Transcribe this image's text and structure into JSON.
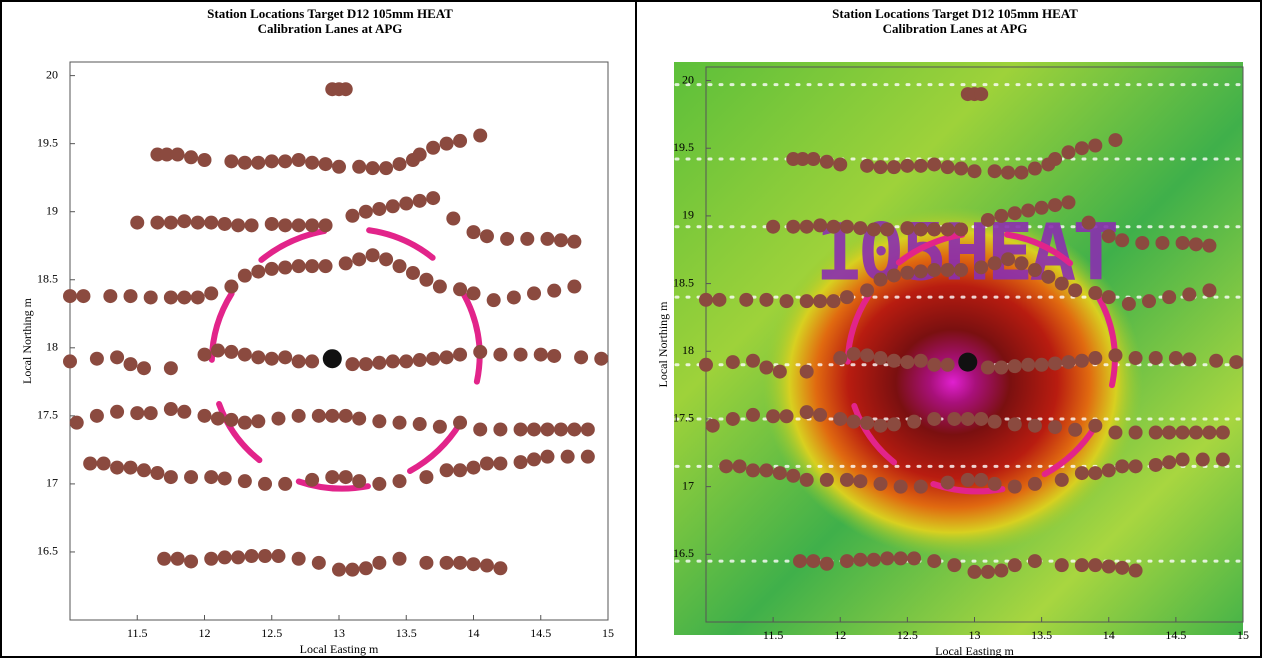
{
  "chart_data": [
    {
      "type": "scatter",
      "title": "Station Locations     Target D12  105mm HEAT",
      "subtitle": "Calibration Lanes at APG",
      "xlabel": "Local Easting  m",
      "ylabel": "Local Northing  m",
      "xlim": [
        11,
        15
      ],
      "ylim": [
        16,
        20.1
      ],
      "xticks": [
        11.5,
        12,
        12.5,
        13,
        13.5,
        14,
        14.5,
        15
      ],
      "yticks": [
        16.5,
        17,
        17.5,
        18,
        18.5,
        19,
        19.5,
        20
      ],
      "series": [
        {
          "color": "#8b4a3f",
          "x": [
            12.95,
            13.0,
            13.05,
            11.65,
            11.72,
            11.8,
            11.9,
            12.0,
            12.2,
            12.3,
            12.4,
            12.5,
            12.6,
            12.7,
            12.8,
            12.9,
            13.0,
            13.15,
            13.25,
            13.35,
            13.45,
            13.55,
            13.6,
            13.7,
            13.8,
            13.9,
            14.05,
            11.5,
            11.65,
            11.75,
            11.85,
            11.95,
            12.05,
            12.15,
            12.25,
            12.35,
            12.5,
            12.6,
            12.7,
            12.8,
            12.9,
            13.1,
            13.2,
            13.3,
            13.4,
            13.5,
            13.6,
            13.7,
            13.85,
            14.0,
            14.1,
            14.25,
            14.4,
            14.55,
            14.65,
            14.75,
            11.0,
            11.1,
            11.3,
            11.45,
            11.6,
            11.75,
            11.85,
            11.95,
            12.05,
            12.2,
            12.3,
            12.4,
            12.5,
            12.6,
            12.7,
            12.8,
            12.9,
            13.05,
            13.15,
            13.25,
            13.35,
            13.45,
            13.55,
            13.65,
            13.75,
            13.9,
            14.0,
            14.15,
            14.3,
            14.45,
            14.6,
            14.75,
            11.0,
            11.2,
            11.35,
            11.45,
            11.55,
            11.75,
            12.0,
            12.1,
            12.2,
            12.3,
            12.4,
            12.5,
            12.6,
            12.7,
            12.8,
            13.1,
            13.2,
            13.3,
            13.4,
            13.5,
            13.6,
            13.7,
            13.8,
            13.9,
            14.05,
            14.2,
            14.35,
            14.5,
            14.6,
            14.8,
            14.95,
            11.05,
            11.2,
            11.35,
            11.5,
            11.6,
            11.75,
            11.85,
            12.0,
            12.1,
            12.2,
            12.3,
            12.4,
            12.55,
            12.7,
            12.85,
            12.95,
            13.05,
            13.15,
            13.3,
            13.45,
            13.6,
            13.75,
            13.9,
            14.05,
            14.2,
            14.35,
            14.45,
            14.55,
            14.65,
            14.75,
            14.85,
            11.15,
            11.25,
            11.35,
            11.45,
            11.55,
            11.65,
            11.75,
            11.9,
            12.05,
            12.15,
            12.3,
            12.45,
            12.6,
            12.8,
            12.95,
            13.05,
            13.15,
            13.3,
            13.45,
            13.65,
            13.8,
            13.9,
            14.0,
            14.1,
            14.2,
            14.35,
            14.45,
            14.55,
            14.7,
            14.85,
            11.7,
            11.8,
            11.9,
            12.05,
            12.15,
            12.25,
            12.35,
            12.45,
            12.55,
            12.7,
            12.85,
            13.0,
            13.1,
            13.2,
            13.3,
            13.45,
            13.65,
            13.8,
            13.9,
            14.0,
            14.1,
            14.2
          ],
          "y": [
            19.9,
            19.9,
            19.9,
            19.42,
            19.42,
            19.42,
            19.4,
            19.38,
            19.37,
            19.36,
            19.36,
            19.37,
            19.37,
            19.38,
            19.36,
            19.35,
            19.33,
            19.33,
            19.32,
            19.32,
            19.35,
            19.38,
            19.42,
            19.47,
            19.5,
            19.52,
            19.56,
            18.92,
            18.92,
            18.92,
            18.93,
            18.92,
            18.92,
            18.91,
            18.9,
            18.9,
            18.91,
            18.9,
            18.9,
            18.9,
            18.9,
            18.97,
            19.0,
            19.02,
            19.04,
            19.06,
            19.08,
            19.1,
            18.95,
            18.85,
            18.82,
            18.8,
            18.8,
            18.8,
            18.79,
            18.78,
            18.38,
            18.38,
            18.38,
            18.38,
            18.37,
            18.37,
            18.37,
            18.37,
            18.4,
            18.45,
            18.53,
            18.56,
            18.58,
            18.59,
            18.6,
            18.6,
            18.6,
            18.62,
            18.65,
            18.68,
            18.65,
            18.6,
            18.55,
            18.5,
            18.45,
            18.43,
            18.4,
            18.35,
            18.37,
            18.4,
            18.42,
            18.45,
            17.9,
            17.92,
            17.93,
            17.88,
            17.85,
            17.85,
            17.95,
            17.98,
            17.97,
            17.95,
            17.93,
            17.92,
            17.93,
            17.9,
            17.9,
            17.88,
            17.88,
            17.89,
            17.9,
            17.9,
            17.91,
            17.92,
            17.93,
            17.95,
            17.97,
            17.95,
            17.95,
            17.95,
            17.94,
            17.93,
            17.92,
            17.45,
            17.5,
            17.53,
            17.52,
            17.52,
            17.55,
            17.53,
            17.5,
            17.48,
            17.47,
            17.45,
            17.46,
            17.48,
            17.5,
            17.5,
            17.5,
            17.5,
            17.48,
            17.46,
            17.45,
            17.44,
            17.42,
            17.45,
            17.4,
            17.4,
            17.4,
            17.4,
            17.4,
            17.4,
            17.4,
            17.4,
            17.15,
            17.15,
            17.12,
            17.12,
            17.1,
            17.08,
            17.05,
            17.05,
            17.05,
            17.04,
            17.02,
            17.0,
            17.0,
            17.03,
            17.05,
            17.05,
            17.02,
            17.0,
            17.02,
            17.05,
            17.1,
            17.1,
            17.12,
            17.15,
            17.15,
            17.16,
            17.18,
            17.2,
            17.2,
            17.2,
            16.45,
            16.45,
            16.43,
            16.45,
            16.46,
            16.46,
            16.47,
            16.47,
            16.47,
            16.45,
            16.42,
            16.37,
            16.37,
            16.38,
            16.42,
            16.45,
            16.42,
            16.42,
            16.42,
            16.41,
            16.4,
            16.38
          ]
        },
        {
          "color": "#111111",
          "x": [
            12.95
          ],
          "y": [
            17.92
          ]
        }
      ]
    },
    {
      "type": "scatter",
      "title": "Station Locations     Target D12  105mm HEAT",
      "subtitle": "Calibration Lanes at APG",
      "xlabel": "Local Easting  m",
      "ylabel": "Local Northing  m",
      "annotation": "105HEAT",
      "colormap": true,
      "xlim": [
        11,
        15
      ],
      "ylim": [
        16,
        20.1
      ],
      "xticks": [
        11.5,
        12,
        12.5,
        13,
        13.5,
        14,
        14.5,
        15
      ],
      "yticks": [
        16.5,
        17,
        17.5,
        18,
        18.5,
        19,
        19.5,
        20
      ],
      "series": [
        {
          "color": "#8b4a3f",
          "x": [
            12.95,
            13.0,
            13.05,
            11.65,
            11.72,
            11.8,
            11.9,
            12.0,
            12.2,
            12.3,
            12.4,
            12.5,
            12.6,
            12.7,
            12.8,
            12.9,
            13.0,
            13.15,
            13.25,
            13.35,
            13.45,
            13.55,
            13.6,
            13.7,
            13.8,
            13.9,
            14.05,
            11.5,
            11.65,
            11.75,
            11.85,
            11.95,
            12.05,
            12.15,
            12.25,
            12.35,
            12.5,
            12.6,
            12.7,
            12.8,
            12.9,
            13.1,
            13.2,
            13.3,
            13.4,
            13.5,
            13.6,
            13.7,
            13.85,
            14.0,
            14.1,
            14.25,
            14.4,
            14.55,
            14.65,
            14.75,
            11.0,
            11.1,
            11.3,
            11.45,
            11.6,
            11.75,
            11.85,
            11.95,
            12.05,
            12.2,
            12.3,
            12.4,
            12.5,
            12.6,
            12.7,
            12.8,
            12.9,
            13.05,
            13.15,
            13.25,
            13.35,
            13.45,
            13.55,
            13.65,
            13.75,
            13.9,
            14.0,
            14.15,
            14.3,
            14.45,
            14.6,
            14.75,
            11.0,
            11.2,
            11.35,
            11.45,
            11.55,
            11.75,
            12.0,
            12.1,
            12.2,
            12.3,
            12.4,
            12.5,
            12.6,
            12.7,
            12.8,
            13.1,
            13.2,
            13.3,
            13.4,
            13.5,
            13.6,
            13.7,
            13.8,
            13.9,
            14.05,
            14.2,
            14.35,
            14.5,
            14.6,
            14.8,
            14.95,
            11.05,
            11.2,
            11.35,
            11.5,
            11.6,
            11.75,
            11.85,
            12.0,
            12.1,
            12.2,
            12.3,
            12.4,
            12.55,
            12.7,
            12.85,
            12.95,
            13.05,
            13.15,
            13.3,
            13.45,
            13.6,
            13.75,
            13.9,
            14.05,
            14.2,
            14.35,
            14.45,
            14.55,
            14.65,
            14.75,
            14.85,
            11.15,
            11.25,
            11.35,
            11.45,
            11.55,
            11.65,
            11.75,
            11.9,
            12.05,
            12.15,
            12.3,
            12.45,
            12.6,
            12.8,
            12.95,
            13.05,
            13.15,
            13.3,
            13.45,
            13.65,
            13.8,
            13.9,
            14.0,
            14.1,
            14.2,
            14.35,
            14.45,
            14.55,
            14.7,
            14.85,
            11.7,
            11.8,
            11.9,
            12.05,
            12.15,
            12.25,
            12.35,
            12.45,
            12.55,
            12.7,
            12.85,
            13.0,
            13.1,
            13.2,
            13.3,
            13.45,
            13.65,
            13.8,
            13.9,
            14.0,
            14.1,
            14.2
          ],
          "y": [
            19.9,
            19.9,
            19.9,
            19.42,
            19.42,
            19.42,
            19.4,
            19.38,
            19.37,
            19.36,
            19.36,
            19.37,
            19.37,
            19.38,
            19.36,
            19.35,
            19.33,
            19.33,
            19.32,
            19.32,
            19.35,
            19.38,
            19.42,
            19.47,
            19.5,
            19.52,
            19.56,
            18.92,
            18.92,
            18.92,
            18.93,
            18.92,
            18.92,
            18.91,
            18.9,
            18.9,
            18.91,
            18.9,
            18.9,
            18.9,
            18.9,
            18.97,
            19.0,
            19.02,
            19.04,
            19.06,
            19.08,
            19.1,
            18.95,
            18.85,
            18.82,
            18.8,
            18.8,
            18.8,
            18.79,
            18.78,
            18.38,
            18.38,
            18.38,
            18.38,
            18.37,
            18.37,
            18.37,
            18.37,
            18.4,
            18.45,
            18.53,
            18.56,
            18.58,
            18.59,
            18.6,
            18.6,
            18.6,
            18.62,
            18.65,
            18.68,
            18.65,
            18.6,
            18.55,
            18.5,
            18.45,
            18.43,
            18.4,
            18.35,
            18.37,
            18.4,
            18.42,
            18.45,
            17.9,
            17.92,
            17.93,
            17.88,
            17.85,
            17.85,
            17.95,
            17.98,
            17.97,
            17.95,
            17.93,
            17.92,
            17.93,
            17.9,
            17.9,
            17.88,
            17.88,
            17.89,
            17.9,
            17.9,
            17.91,
            17.92,
            17.93,
            17.95,
            17.97,
            17.95,
            17.95,
            17.95,
            17.94,
            17.93,
            17.92,
            17.45,
            17.5,
            17.53,
            17.52,
            17.52,
            17.55,
            17.53,
            17.5,
            17.48,
            17.47,
            17.45,
            17.46,
            17.48,
            17.5,
            17.5,
            17.5,
            17.5,
            17.48,
            17.46,
            17.45,
            17.44,
            17.42,
            17.45,
            17.4,
            17.4,
            17.4,
            17.4,
            17.4,
            17.4,
            17.4,
            17.4,
            17.15,
            17.15,
            17.12,
            17.12,
            17.1,
            17.08,
            17.05,
            17.05,
            17.05,
            17.04,
            17.02,
            17.0,
            17.0,
            17.03,
            17.05,
            17.05,
            17.02,
            17.0,
            17.02,
            17.05,
            17.1,
            17.1,
            17.12,
            17.15,
            17.15,
            17.16,
            17.18,
            17.2,
            17.2,
            17.2,
            16.45,
            16.45,
            16.43,
            16.45,
            16.46,
            16.46,
            16.47,
            16.47,
            16.47,
            16.45,
            16.42,
            16.37,
            16.37,
            16.38,
            16.42,
            16.45,
            16.42,
            16.42,
            16.42,
            16.41,
            16.4,
            16.38
          ]
        },
        {
          "color": "#111111",
          "x": [
            12.95
          ],
          "y": [
            17.92
          ]
        }
      ]
    }
  ]
}
